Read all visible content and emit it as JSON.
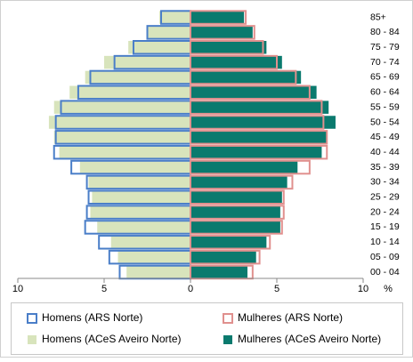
{
  "chart_data": {
    "type": "pyramid",
    "categories": [
      "00 - 04",
      "05 - 09",
      "10 - 14",
      "15 - 19",
      "20 - 24",
      "25 - 29",
      "30 - 34",
      "35 - 39",
      "40 - 44",
      "45 - 49",
      "50 - 54",
      "55 - 59",
      "60 - 64",
      "65 - 69",
      "70 - 74",
      "75 - 79",
      "80 - 84",
      "85+"
    ],
    "series": [
      {
        "name": "Homens (ACeS Aveiro Norte)",
        "color": "#d8e4bc",
        "side": "left",
        "style": "fill",
        "values": [
          3.7,
          4.2,
          4.6,
          5.4,
          5.8,
          5.7,
          5.9,
          6.4,
          7.6,
          7.9,
          8.2,
          7.9,
          7.0,
          6.1,
          5.0,
          3.6,
          2.5,
          1.8
        ]
      },
      {
        "name": "Mulheres (ACeS Aveiro Norte)",
        "color": "#0a7a6e",
        "side": "right",
        "style": "fill",
        "values": [
          3.3,
          3.8,
          4.4,
          5.2,
          5.2,
          5.3,
          5.6,
          6.2,
          7.6,
          7.9,
          8.4,
          8.0,
          7.3,
          6.4,
          5.3,
          4.4,
          3.6,
          3.1
        ]
      },
      {
        "name": "Homens (ARS Norte)",
        "color": "#4a7ec8",
        "side": "left",
        "style": "outline",
        "values": [
          4.1,
          4.7,
          5.3,
          6.1,
          6.0,
          5.9,
          6.0,
          6.9,
          7.9,
          7.8,
          7.8,
          7.5,
          6.5,
          5.8,
          4.4,
          3.3,
          2.5,
          1.7
        ]
      },
      {
        "name": "Mulheres (ARS Norte)",
        "color": "#e0908e",
        "side": "right",
        "style": "outline",
        "values": [
          3.6,
          4.0,
          4.6,
          5.3,
          5.4,
          5.4,
          5.9,
          6.9,
          7.9,
          7.9,
          7.7,
          7.6,
          6.9,
          6.1,
          5.0,
          4.2,
          3.7,
          3.2
        ]
      }
    ],
    "legend_order": [
      2,
      3,
      0,
      1
    ],
    "x_label": "%",
    "xlim": [
      -10,
      10
    ],
    "xticks": [
      {
        "value": -10,
        "label": "10"
      },
      {
        "value": -5,
        "label": "5"
      },
      0,
      5,
      10
    ]
  }
}
